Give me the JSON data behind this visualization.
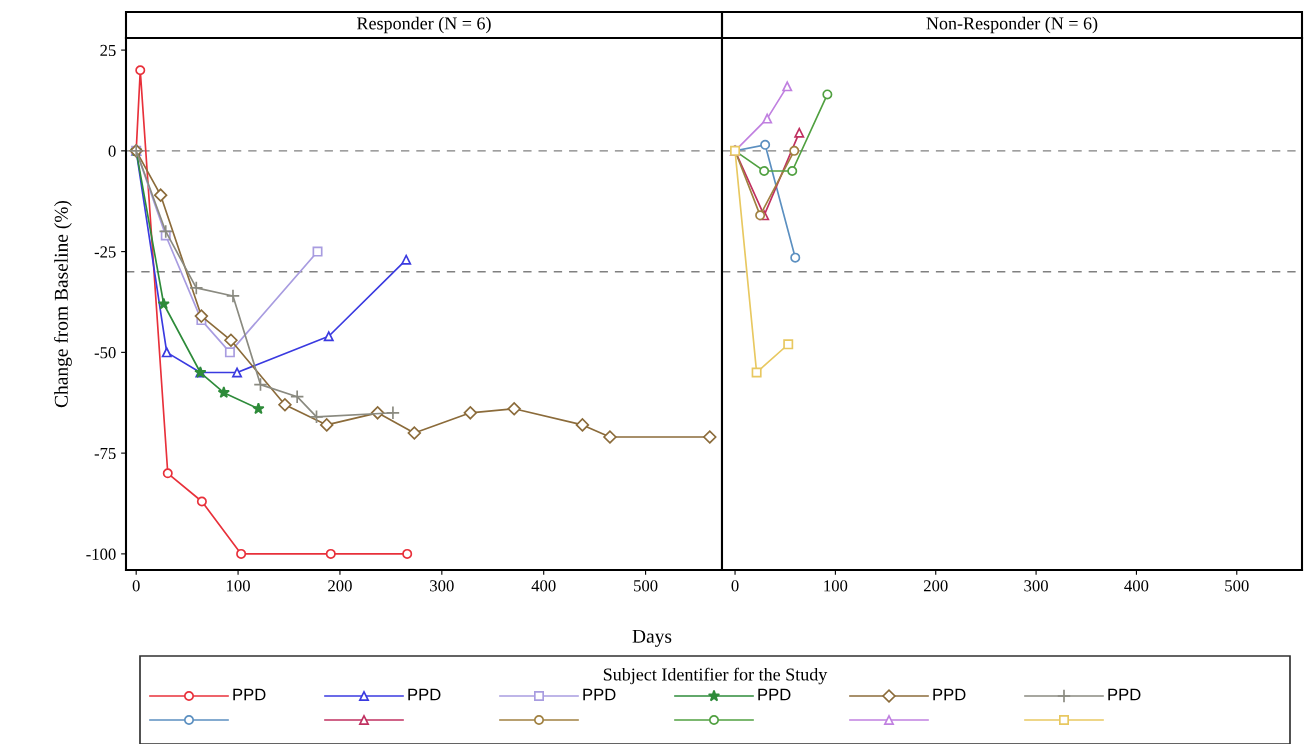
{
  "chart_data": [
    {
      "type": "line",
      "title": "Responder (N = 6)",
      "xlabel": "Days",
      "ylabel": "Change from Baseline (%)",
      "legend_title": "Subject Identifier for the Study",
      "legend": "bottom",
      "xlim": [
        -10,
        575
      ],
      "ylim": [
        -104,
        28
      ],
      "xticks": [
        0,
        100,
        200,
        300,
        400,
        500
      ],
      "yticks": [
        25,
        0,
        -25,
        -50,
        -75,
        -100
      ],
      "grid": false,
      "ref_lines": [
        {
          "axis": "y",
          "value": 0,
          "color": "#808080",
          "line_style": "dashed"
        },
        {
          "axis": "y",
          "value": -30,
          "color": "#808080",
          "line_style": "dashed"
        }
      ],
      "series": [
        {
          "name": "PPD",
          "color": "#e8303a",
          "marker": "circle",
          "x": [
            0,
            4,
            31,
            64.5,
            103,
            191,
            266
          ],
          "values": [
            0,
            20,
            -80,
            -87,
            -100,
            -100,
            -100
          ]
        },
        {
          "name": "PPD",
          "color": "#3a3ae0",
          "marker": "triangle",
          "x": [
            0,
            30,
            63,
            99,
            189,
            265
          ],
          "values": [
            0,
            -50,
            -55,
            -55,
            -46,
            -27
          ]
        },
        {
          "name": "PPD",
          "color": "#a89ce0",
          "marker": "square",
          "x": [
            0,
            29,
            64,
            92,
            178
          ],
          "values": [
            0,
            -21,
            -42,
            -50,
            -25
          ]
        },
        {
          "name": "PPD",
          "color": "#2e8b3a",
          "marker": "star",
          "x": [
            0,
            27,
            63,
            86,
            120
          ],
          "values": [
            0,
            -38,
            -55,
            -60,
            -64
          ]
        },
        {
          "name": "PPD",
          "color": "#8b6b3a",
          "marker": "diamond",
          "x": [
            0,
            24,
            64,
            93,
            146,
            187,
            237,
            273,
            328,
            371,
            438,
            465,
            563
          ],
          "values": [
            0,
            -11,
            -41,
            -47,
            -63,
            -68,
            -65,
            -70,
            -65,
            -64,
            -68,
            -71,
            -71
          ]
        },
        {
          "name": "PPD",
          "color": "#8a8a80",
          "marker": "cross",
          "x": [
            0,
            29,
            59,
            95,
            122,
            158,
            177,
            252
          ],
          "values": [
            0,
            -20,
            -34,
            -36,
            -58,
            -61,
            -66,
            -65
          ]
        }
      ]
    },
    {
      "type": "line",
      "title": "Non-Responder (N = 6)",
      "xlim": [
        -13,
        565
      ],
      "ylim": [
        -104,
        28
      ],
      "xticks": [
        0,
        100,
        200,
        300,
        400,
        500
      ],
      "yticks": [
        25,
        0,
        -25,
        -50,
        -75,
        -100
      ],
      "tick_labels": "x",
      "grid": false,
      "ref_lines": [
        {
          "axis": "y",
          "value": 0,
          "color": "#808080",
          "line_style": "dashed"
        },
        {
          "axis": "y",
          "value": -30,
          "color": "#808080",
          "line_style": "dashed"
        }
      ],
      "series": [
        {
          "color": "#5b8fc0",
          "marker": "circle",
          "x": [
            0,
            30,
            60
          ],
          "values": [
            0,
            1.5,
            -26.5
          ]
        },
        {
          "color": "#c03060",
          "marker": "triangle",
          "x": [
            0,
            29,
            64
          ],
          "values": [
            0,
            -16,
            4.5
          ]
        },
        {
          "color": "#a08040",
          "marker": "circle",
          "x": [
            0,
            25,
            59
          ],
          "values": [
            0,
            -16,
            0
          ]
        },
        {
          "color": "#50a040",
          "marker": "circle",
          "x": [
            0,
            29,
            57,
            92
          ],
          "values": [
            0,
            -5,
            -5,
            14
          ]
        },
        {
          "color": "#c080e0",
          "marker": "triangle",
          "x": [
            0,
            32,
            52
          ],
          "values": [
            0,
            8,
            16
          ]
        },
        {
          "color": "#e8c860",
          "marker": "square",
          "x": [
            0,
            21.5,
            53
          ],
          "values": [
            0,
            -55,
            -48
          ]
        }
      ]
    }
  ]
}
